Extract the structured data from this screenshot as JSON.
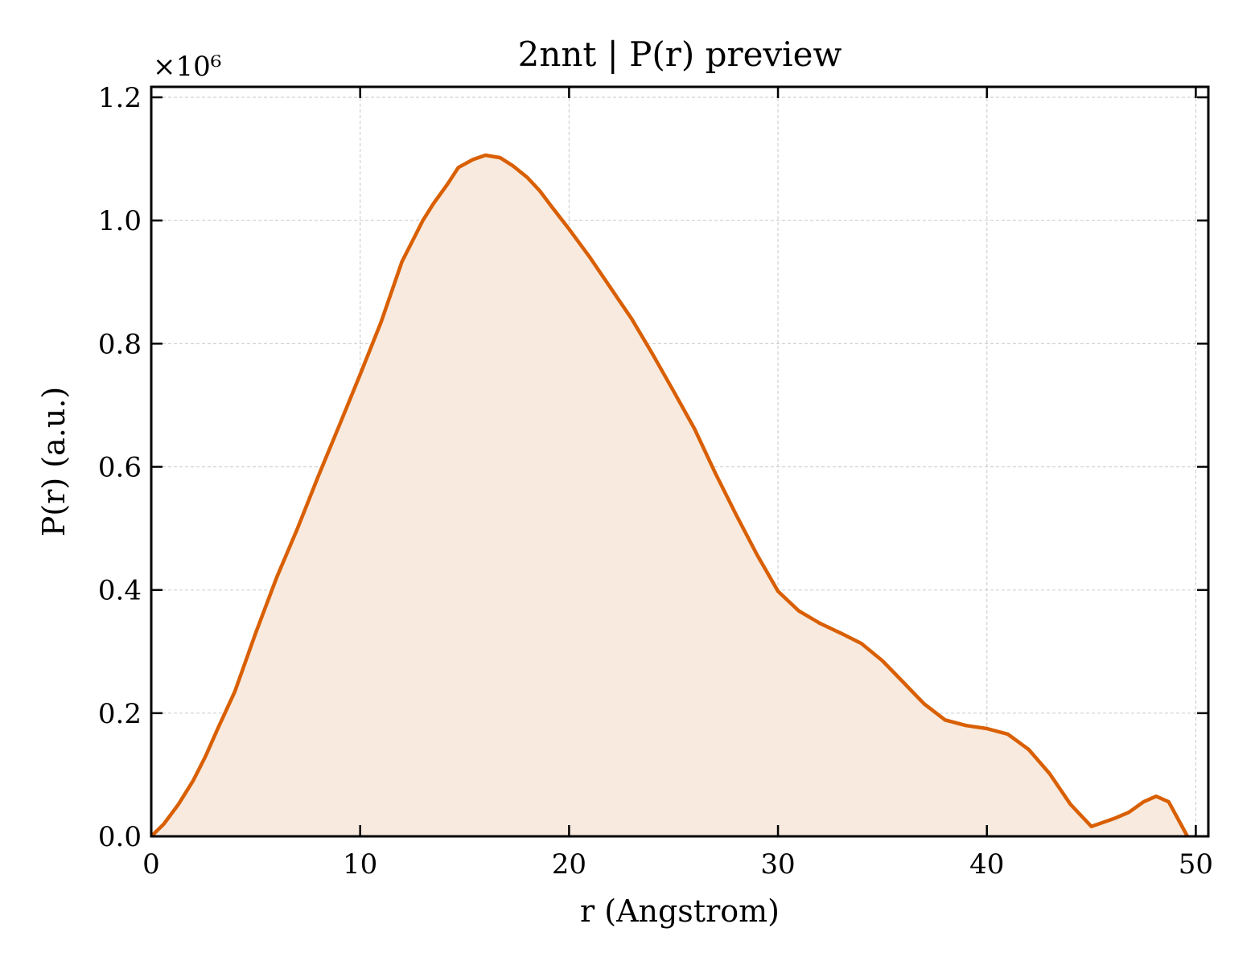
{
  "chart_data": {
    "type": "line",
    "title": "2nnt | P(r) preview",
    "xlabel": "r (Angstrom)",
    "ylabel": "P(r) (a.u.)",
    "y_offset_label": "×10⁶",
    "xlim": [
      0,
      50.6
    ],
    "ylim": [
      0,
      1.217
    ],
    "xticks": [
      0,
      10,
      20,
      30,
      40,
      50
    ],
    "yticks": [
      {
        "value": 0,
        "label": "0.0"
      },
      0.2,
      0.4,
      0.6,
      0.8,
      {
        "value": 1,
        "label": "1.0"
      },
      1.2
    ],
    "grid": true,
    "fill": true,
    "x": [
      0,
      0.6,
      1.3,
      2,
      2.6,
      3.2,
      4,
      5,
      6,
      7,
      8,
      9,
      10,
      11,
      12,
      13,
      13.5,
      14.2,
      14.7,
      15.4,
      16,
      16.7,
      17.3,
      18,
      18.6,
      19.2,
      20,
      21,
      22,
      23,
      24,
      25,
      26,
      27,
      28,
      29,
      30,
      31,
      32,
      33,
      34,
      35,
      36,
      37,
      38,
      39,
      40,
      41,
      42,
      43,
      44,
      45,
      46.1,
      46.8,
      47.5,
      48.1,
      48.7,
      49.6
    ],
    "series": [
      {
        "name": "P(r)",
        "color": "#d95f02",
        "fill_color": "#f8eadf",
        "values": [
          0,
          0.02,
          0.052,
          0.09,
          0.13,
          0.176,
          0.235,
          0.33,
          0.42,
          0.5,
          0.585,
          0.667,
          0.75,
          0.835,
          0.933,
          1.0,
          1.027,
          1.06,
          1.086,
          1.099,
          1.106,
          1.102,
          1.089,
          1.07,
          1.048,
          1.021,
          0.986,
          0.94,
          0.89,
          0.84,
          0.783,
          0.723,
          0.662,
          0.59,
          0.522,
          0.457,
          0.398,
          0.366,
          0.346,
          0.33,
          0.313,
          0.285,
          0.25,
          0.215,
          0.189,
          0.18,
          0.175,
          0.166,
          0.141,
          0.102,
          0.052,
          0.016,
          0.029,
          0.039,
          0.056,
          0.065,
          0.056,
          0
        ]
      }
    ]
  }
}
